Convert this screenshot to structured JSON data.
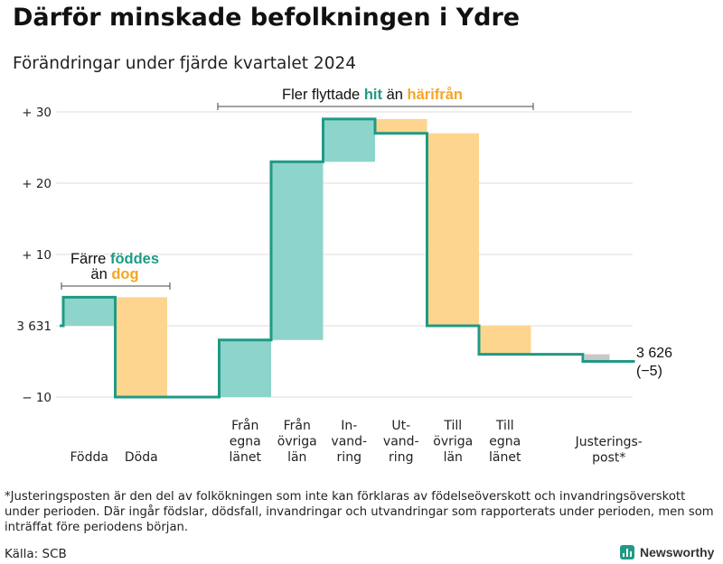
{
  "title": "Därför minskade befolkningen i Ydre",
  "subtitle": "Förändringar under fjärde kvartalet 2024",
  "chart_data": {
    "type": "waterfall",
    "start_value": 3631,
    "end_value": 3626,
    "net_change": -5,
    "y_ticks": [
      {
        "value": 30,
        "label": "+ 30"
      },
      {
        "value": 20,
        "label": "+ 20"
      },
      {
        "value": 10,
        "label": "+ 10"
      },
      {
        "value": 0,
        "label": "3 631"
      },
      {
        "value": -10,
        "label": "− 10"
      }
    ],
    "ylim": [
      -10,
      30
    ],
    "categories": [
      {
        "label": [
          "Födda"
        ],
        "change": 4,
        "kind": "increase"
      },
      {
        "label": [
          "Döda"
        ],
        "change": -14,
        "kind": "decrease"
      },
      {
        "label": [
          ""
        ],
        "change": 0,
        "kind": "none"
      },
      {
        "label": [
          "Från",
          "egna",
          "länet"
        ],
        "change": 8,
        "kind": "increase"
      },
      {
        "label": [
          "Från",
          "övriga",
          "län"
        ],
        "change": 25,
        "kind": "increase"
      },
      {
        "label": [
          "In-",
          "vand-",
          "ring"
        ],
        "change": 6,
        "kind": "increase"
      },
      {
        "label": [
          "Ut-",
          "vand-",
          "ring"
        ],
        "change": -2,
        "kind": "decrease"
      },
      {
        "label": [
          "Till",
          "övriga",
          "län"
        ],
        "change": -27,
        "kind": "decrease"
      },
      {
        "label": [
          "Till",
          "egna",
          "länet"
        ],
        "change": -4,
        "kind": "decrease"
      },
      {
        "label": [
          ""
        ],
        "change": 0,
        "kind": "none"
      },
      {
        "label": [
          "Justerings-",
          "post*"
        ],
        "change": -1,
        "kind": "adjustment"
      }
    ],
    "end_label": {
      "line1": "3 626",
      "line2": "(−5)"
    },
    "annotations": {
      "births": {
        "prefix": "Färre ",
        "highlight1": "föddes",
        "line2_prefix": "än ",
        "highlight2": "dog"
      },
      "migration": {
        "prefix": "Fler flyttade ",
        "highlight1": "hit",
        "middle": " än ",
        "highlight2": "härifrån"
      }
    },
    "colors": {
      "increase": "#8dd5cb",
      "decrease": "#fdd58e",
      "adjustment": "#c8c8c8",
      "line": "#1f9a86",
      "accent_green": "#1f9a86",
      "accent_orange": "#f5a623"
    }
  },
  "footnote": "*Justeringsposten är den del av folkökningen som inte kan förklaras av födelseöverskott och invandringsöverskott under perioden. Där ingår födslar, dödsfall, invandringar och utvandringar som rapporterats under perioden, men som inträffat före periodens början.",
  "source": "Källa: SCB",
  "brand": {
    "name": "Newsworthy",
    "logo_icon": "bar-chart-logo-icon"
  }
}
